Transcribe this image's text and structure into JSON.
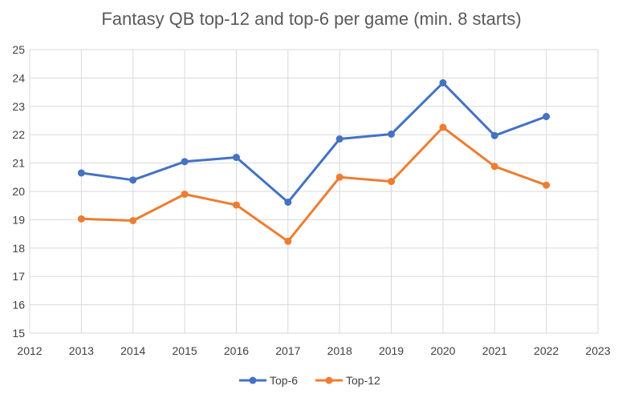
{
  "chart_data": {
    "type": "line",
    "title": "Fantasy QB top-12 and top-6 per game (min. 8 starts)",
    "xlabel": "",
    "ylabel": "",
    "xlim": [
      2012,
      2023
    ],
    "ylim": [
      15,
      25
    ],
    "x_ticks": [
      "2012",
      "2013",
      "2014",
      "2015",
      "2016",
      "2017",
      "2018",
      "2019",
      "2020",
      "2021",
      "2022",
      "2023"
    ],
    "y_ticks": [
      "15",
      "16",
      "17",
      "18",
      "19",
      "20",
      "21",
      "22",
      "23",
      "24",
      "25"
    ],
    "x": [
      2013,
      2014,
      2015,
      2016,
      2017,
      2018,
      2019,
      2020,
      2021,
      2022
    ],
    "grid": true,
    "legend_position": "bottom",
    "series": [
      {
        "name": "Top-6",
        "color": "#4472c4",
        "values": [
          20.65,
          20.4,
          21.05,
          21.2,
          19.62,
          21.85,
          22.02,
          23.83,
          21.97,
          22.64
        ]
      },
      {
        "name": "Top-12",
        "color": "#ed7d31",
        "values": [
          19.03,
          18.97,
          19.9,
          19.52,
          18.24,
          20.5,
          20.35,
          22.26,
          20.88,
          20.22
        ]
      }
    ]
  }
}
